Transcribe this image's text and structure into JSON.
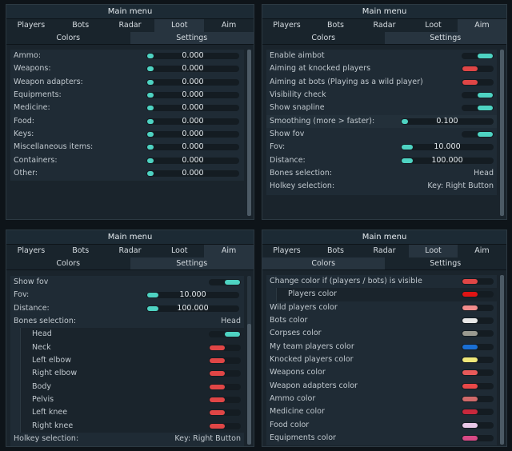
{
  "menu_title": "Main menu",
  "tabs": [
    "Players",
    "Bots",
    "Radar",
    "Loot",
    "Aim"
  ],
  "subtabs": [
    "Colors",
    "Settings"
  ],
  "loot_panel": {
    "items": [
      {
        "label": "Ammo:",
        "value": "0.000"
      },
      {
        "label": "Weapons:",
        "value": "0.000"
      },
      {
        "label": "Weapon adapters:",
        "value": "0.000"
      },
      {
        "label": "Equipments:",
        "value": "0.000"
      },
      {
        "label": "Medicine:",
        "value": "0.000"
      },
      {
        "label": "Food:",
        "value": "0.000"
      },
      {
        "label": "Keys:",
        "value": "0.000"
      },
      {
        "label": "Miscellaneous items:",
        "value": "0.000"
      },
      {
        "label": "Containers:",
        "value": "0.000"
      },
      {
        "label": "Other:",
        "value": "0.000"
      }
    ]
  },
  "aim_panel": {
    "enable_aimbot": "Enable aimbot",
    "aim_knocked": "Aiming at knocked players",
    "aim_bots": "Aiming at bots (Playing as a wild player)",
    "visibility_check": "Visibility check",
    "show_snapline": "Show snapline",
    "smoothing_label": "Smoothing (more > faster):",
    "smoothing_value": "0.100",
    "show_fov": "Show fov",
    "fov_label": "Fov:",
    "fov_value": "10.000",
    "distance_label": "Distance:",
    "distance_value": "100.000",
    "bones_label": "Bones selection:",
    "bones_value": "Head",
    "hotkey_label": "Holkey selection:",
    "hotkey_value": "Key: Right Button"
  },
  "aim_panel2": {
    "show_fov": "Show fov",
    "fov_label": "Fov:",
    "fov_value": "10.000",
    "distance_label": "Distance:",
    "distance_value": "100.000",
    "bones_label": "Bones selection:",
    "bones_value": "Head",
    "bones": [
      "Head",
      "Neck",
      "Left elbow",
      "Right elbow",
      "Body",
      "Pelvis",
      "Left knee",
      "Right knee"
    ],
    "hotkey_label": "Holkey selection:",
    "hotkey_value": "Key: Right Button"
  },
  "colors_panel": {
    "items": [
      {
        "label": "Change color if (players / bots) is visible",
        "color": "#e04646"
      },
      {
        "label": "Players color",
        "color": "#e01414"
      },
      {
        "label": "Wild players color",
        "color": "#f08c8c"
      },
      {
        "label": "Bots color",
        "color": "#e8e8e8"
      },
      {
        "label": "Corpses color",
        "color": "#9a9a90"
      },
      {
        "label": "My team players color",
        "color": "#1a6fd4"
      },
      {
        "label": "Knocked players color",
        "color": "#f0e87a"
      },
      {
        "label": "Weapons color",
        "color": "#e85a5a"
      },
      {
        "label": "Weapon adapters color",
        "color": "#e84848"
      },
      {
        "label": "Ammo color",
        "color": "#d06a6a"
      },
      {
        "label": "Medicine color",
        "color": "#c8283c"
      },
      {
        "label": "Food color",
        "color": "#e8c8e8"
      },
      {
        "label": "Equipments color",
        "color": "#d84a86"
      }
    ]
  }
}
